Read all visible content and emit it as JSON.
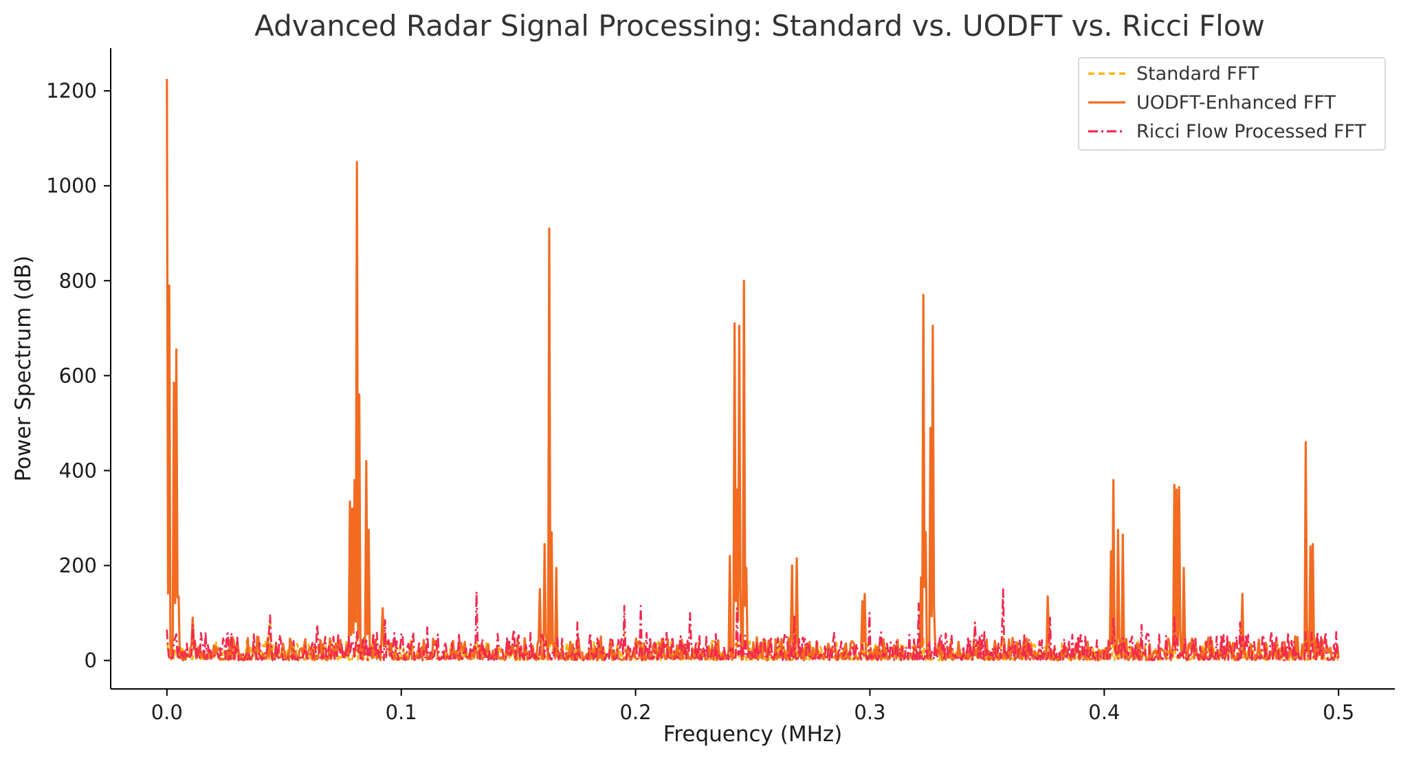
{
  "chart_data": {
    "type": "line",
    "title": "Advanced Radar Signal Processing: Standard vs. UODFT vs. Ricci Flow",
    "xlabel": "Frequency (MHz)",
    "ylabel": "Power Spectrum (dB)",
    "xlim": [
      -0.024,
      0.524
    ],
    "ylim": [
      -60,
      1290
    ],
    "xticks": [
      0.0,
      0.1,
      0.2,
      0.3,
      0.4,
      0.5
    ],
    "xtick_labels": [
      "0.0",
      "0.1",
      "0.2",
      "0.3",
      "0.4",
      "0.5"
    ],
    "yticks": [
      0,
      200,
      400,
      600,
      800,
      1000,
      1200
    ],
    "ytick_labels": [
      "0",
      "200",
      "400",
      "600",
      "800",
      "1000",
      "1200"
    ],
    "grid": false,
    "legend_position": "top-right",
    "series": [
      {
        "name": "Standard FFT",
        "color": "#FFB000",
        "style": "dashed",
        "baseline": 12,
        "peaks": [
          [
            0.0,
            60
          ],
          [
            0.044,
            95
          ],
          [
            0.081,
            55
          ],
          [
            0.132,
            40
          ],
          [
            0.163,
            45
          ],
          [
            0.195,
            60
          ],
          [
            0.243,
            55
          ],
          [
            0.268,
            45
          ],
          [
            0.297,
            60
          ],
          [
            0.323,
            50
          ],
          [
            0.357,
            55
          ],
          [
            0.404,
            50
          ],
          [
            0.43,
            70
          ],
          [
            0.459,
            40
          ],
          [
            0.486,
            50
          ]
        ]
      },
      {
        "name": "UODFT-Enhanced FFT",
        "color": "#F26B21",
        "style": "solid",
        "baseline": 15,
        "peaks": [
          [
            0.0,
            1225
          ],
          [
            0.001,
            790
          ],
          [
            0.003,
            585
          ],
          [
            0.004,
            655
          ],
          [
            0.005,
            135
          ],
          [
            0.011,
            90
          ],
          [
            0.078,
            335
          ],
          [
            0.079,
            320
          ],
          [
            0.08,
            380
          ],
          [
            0.081,
            1050
          ],
          [
            0.082,
            560
          ],
          [
            0.085,
            420
          ],
          [
            0.086,
            275
          ],
          [
            0.092,
            110
          ],
          [
            0.159,
            150
          ],
          [
            0.161,
            245
          ],
          [
            0.163,
            910
          ],
          [
            0.164,
            270
          ],
          [
            0.166,
            195
          ],
          [
            0.24,
            220
          ],
          [
            0.242,
            710
          ],
          [
            0.243,
            360
          ],
          [
            0.244,
            705
          ],
          [
            0.246,
            800
          ],
          [
            0.247,
            195
          ],
          [
            0.267,
            200
          ],
          [
            0.269,
            215
          ],
          [
            0.297,
            125
          ],
          [
            0.298,
            140
          ],
          [
            0.322,
            175
          ],
          [
            0.323,
            770
          ],
          [
            0.324,
            270
          ],
          [
            0.326,
            490
          ],
          [
            0.327,
            705
          ],
          [
            0.376,
            135
          ],
          [
            0.403,
            230
          ],
          [
            0.404,
            380
          ],
          [
            0.406,
            275
          ],
          [
            0.408,
            265
          ],
          [
            0.43,
            370
          ],
          [
            0.431,
            360
          ],
          [
            0.432,
            365
          ],
          [
            0.434,
            195
          ],
          [
            0.459,
            140
          ],
          [
            0.486,
            460
          ],
          [
            0.488,
            240
          ],
          [
            0.489,
            245
          ]
        ]
      },
      {
        "name": "Ricci Flow Processed FFT",
        "color": "#F2294F",
        "style": "dashdot",
        "baseline": 18,
        "peaks": [
          [
            0.0,
            65
          ],
          [
            0.011,
            75
          ],
          [
            0.044,
            95
          ],
          [
            0.064,
            75
          ],
          [
            0.081,
            60
          ],
          [
            0.093,
            85
          ],
          [
            0.111,
            70
          ],
          [
            0.132,
            145
          ],
          [
            0.148,
            65
          ],
          [
            0.175,
            80
          ],
          [
            0.195,
            115
          ],
          [
            0.202,
            115
          ],
          [
            0.223,
            100
          ],
          [
            0.243,
            110
          ],
          [
            0.268,
            95
          ],
          [
            0.3,
            100
          ],
          [
            0.321,
            120
          ],
          [
            0.345,
            80
          ],
          [
            0.357,
            150
          ],
          [
            0.377,
            90
          ],
          [
            0.404,
            90
          ],
          [
            0.416,
            75
          ],
          [
            0.43,
            95
          ],
          [
            0.458,
            80
          ],
          [
            0.486,
            60
          ],
          [
            0.499,
            60
          ]
        ]
      }
    ]
  }
}
